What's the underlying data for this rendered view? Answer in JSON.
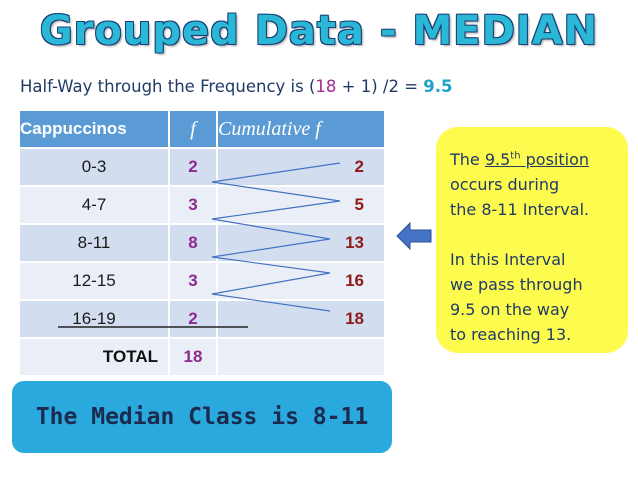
{
  "title": "Grouped Data - MEDIAN",
  "halfway": {
    "prefix": "Half-Way through the Frequency is (",
    "n": "18",
    "middle": " + 1) /2 = ",
    "result": "9.5"
  },
  "table": {
    "headers": {
      "class": "Cappuccinos",
      "f": "f",
      "cumulative": "Cumulative f"
    },
    "rows": [
      {
        "class": "0-3",
        "f": "2",
        "cum": "2"
      },
      {
        "class": "4-7",
        "f": "3",
        "cum": "5"
      },
      {
        "class": "8-11",
        "f": "8",
        "cum": "13"
      },
      {
        "class": "12-15",
        "f": "3",
        "cum": "16"
      },
      {
        "class": "16-19",
        "f": "2",
        "cum": "18"
      }
    ],
    "total_label": "TOTAL",
    "total_value": "18"
  },
  "note": {
    "line1_pre": "The ",
    "line1_num": "9.5",
    "line1_sup": "th",
    "line1_post": " position",
    "line2": "occurs during",
    "line3": "the 8-11 Interval.",
    "line4": "In this Interval",
    "line5": "we pass through",
    "line6": "9.5 on the way",
    "line7": "to reaching 13."
  },
  "conclusion": "The Median Class is 8-11",
  "colors": {
    "title": "#2ab8d6",
    "header": "#5b9bd5",
    "note_bg": "#fdfb4e",
    "conclusion_bg": "#29a9dd",
    "arrow": "#4472c4"
  }
}
